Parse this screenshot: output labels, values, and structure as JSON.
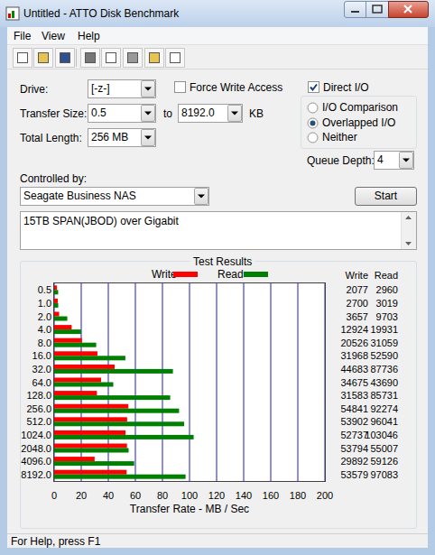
{
  "window": {
    "title": "Untitled - ATTO Disk Benchmark"
  },
  "menu": [
    "File",
    "View",
    "Help"
  ],
  "settings": {
    "drive_label": "Drive:",
    "drive": "[-z-]",
    "force_write_access": {
      "label": "Force Write Access",
      "checked": false
    },
    "direct_io": {
      "label": "Direct I/O",
      "checked": true
    },
    "transfer_size_label": "Transfer Size:",
    "transfer_size_from": "0.5",
    "to_label": "to",
    "transfer_size_to": "8192.0",
    "transfer_size_unit": "KB",
    "total_length_label": "Total Length:",
    "total_length": "256 MB",
    "io_modes": [
      {
        "label": "I/O Comparison",
        "selected": false
      },
      {
        "label": "Overlapped I/O",
        "selected": true
      },
      {
        "label": "Neither",
        "selected": false
      }
    ],
    "queue_depth_label": "Queue Depth:",
    "queue_depth": "4",
    "controlled_by_label": "Controlled by:",
    "controlled_by": "Seagate Business NAS",
    "start_button": "Start",
    "description": "15TB SPAN(JBOD) over Gigabit"
  },
  "chart_data": {
    "type": "bar",
    "title": "Test Results",
    "orientation": "horizontal",
    "grid": true,
    "legend": "top",
    "categories": [
      "0.5",
      "1.0",
      "2.0",
      "4.0",
      "8.0",
      "16.0",
      "32.0",
      "64.0",
      "128.0",
      "256.0",
      "512.0",
      "1024.0",
      "2048.0",
      "4096.0",
      "8192.0"
    ],
    "series": [
      {
        "name": "Write",
        "color": "#ff0000",
        "values": [
          2.077,
          2.7,
          3.657,
          12.924,
          20.526,
          31.968,
          44.683,
          34.675,
          31.583,
          54.841,
          53.902,
          52.737,
          53.794,
          29.892,
          53.579
        ],
        "value_labels": [
          "2077",
          "2700",
          "3657",
          "12924",
          "20526",
          "31968",
          "44683",
          "34675",
          "31583",
          "54841",
          "53902",
          "52737",
          "53794",
          "29892",
          "53579"
        ]
      },
      {
        "name": "Read",
        "color": "#008000",
        "values": [
          2.96,
          3.019,
          9.703,
          19.931,
          31.059,
          52.59,
          87.736,
          43.69,
          85.731,
          92.274,
          96.041,
          103.046,
          55.007,
          59.126,
          97.083
        ],
        "value_labels": [
          "2960",
          "3019",
          "9703",
          "19931",
          "31059",
          "52590",
          "87736",
          "43690",
          "85731",
          "92274",
          "96041",
          "103046",
          "55007",
          "59126",
          "97083"
        ]
      }
    ],
    "xlabel": "Transfer Rate - MB / Sec",
    "xlim": [
      0,
      200
    ],
    "xticks": [
      0,
      20,
      40,
      60,
      80,
      100,
      120,
      140,
      160,
      180,
      200
    ]
  },
  "status_bar": "For Help, press F1"
}
